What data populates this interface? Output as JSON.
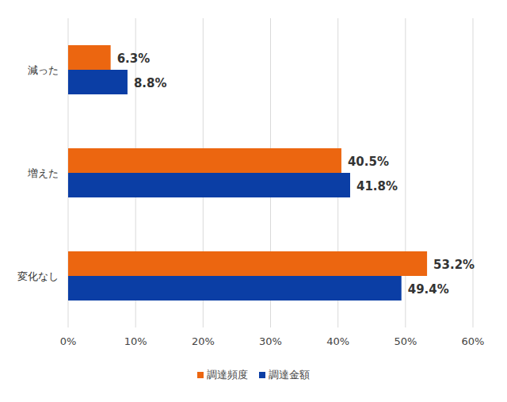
{
  "chart_data": {
    "type": "bar",
    "orientation": "horizontal",
    "categories": [
      "減った",
      "増えた",
      "変化なし"
    ],
    "series": [
      {
        "name": "調達頻度",
        "color": "#ec6610",
        "values": [
          6.3,
          40.5,
          53.2
        ],
        "value_labels": [
          "6.3%",
          "40.5%",
          "53.2%"
        ]
      },
      {
        "name": "調達金額",
        "color": "#0b3ea5",
        "values": [
          8.8,
          41.8,
          49.4
        ],
        "value_labels": [
          "8.8%",
          "41.8%",
          "49.4%"
        ]
      }
    ],
    "xlim": [
      0,
      60
    ],
    "xticks": [
      {
        "value": 0,
        "label": "0%"
      },
      {
        "value": 10,
        "label": "10%"
      },
      {
        "value": 20,
        "label": "20%"
      },
      {
        "value": 30,
        "label": "30%"
      },
      {
        "value": 40,
        "label": "40%"
      },
      {
        "value": 50,
        "label": "50%"
      },
      {
        "value": 60,
        "label": "60%"
      }
    ],
    "grid": true,
    "data_labels": true,
    "legend": "bottom"
  }
}
